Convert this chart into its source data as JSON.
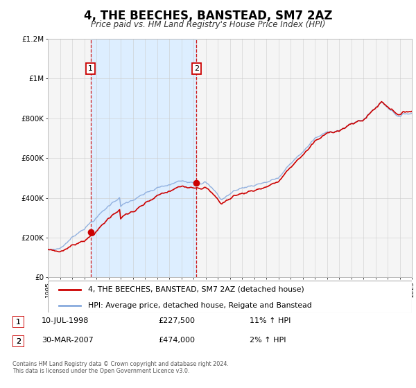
{
  "title": "4, THE BEECHES, BANSTEAD, SM7 2AZ",
  "subtitle": "Price paid vs. HM Land Registry's House Price Index (HPI)",
  "legend_line1": "4, THE BEECHES, BANSTEAD, SM7 2AZ (detached house)",
  "legend_line2": "HPI: Average price, detached house, Reigate and Banstead",
  "transaction1_date": "10-JUL-1998",
  "transaction1_price": "£227,500",
  "transaction1_hpi": "11% ↑ HPI",
  "transaction1_year": 1998.53,
  "transaction1_value": 227500,
  "transaction2_date": "30-MAR-2007",
  "transaction2_price": "£474,000",
  "transaction2_hpi": "2% ↑ HPI",
  "transaction2_year": 2007.24,
  "transaction2_value": 474000,
  "footer_line1": "Contains HM Land Registry data © Crown copyright and database right 2024.",
  "footer_line2": "This data is licensed under the Open Government Licence v3.0.",
  "price_line_color": "#cc0000",
  "hpi_line_color": "#88aadd",
  "shade_color": "#ddeeff",
  "grid_color": "#cccccc",
  "ylim_min": 0,
  "ylim_max": 1200000,
  "plot_bg_color": "#f5f5f5"
}
